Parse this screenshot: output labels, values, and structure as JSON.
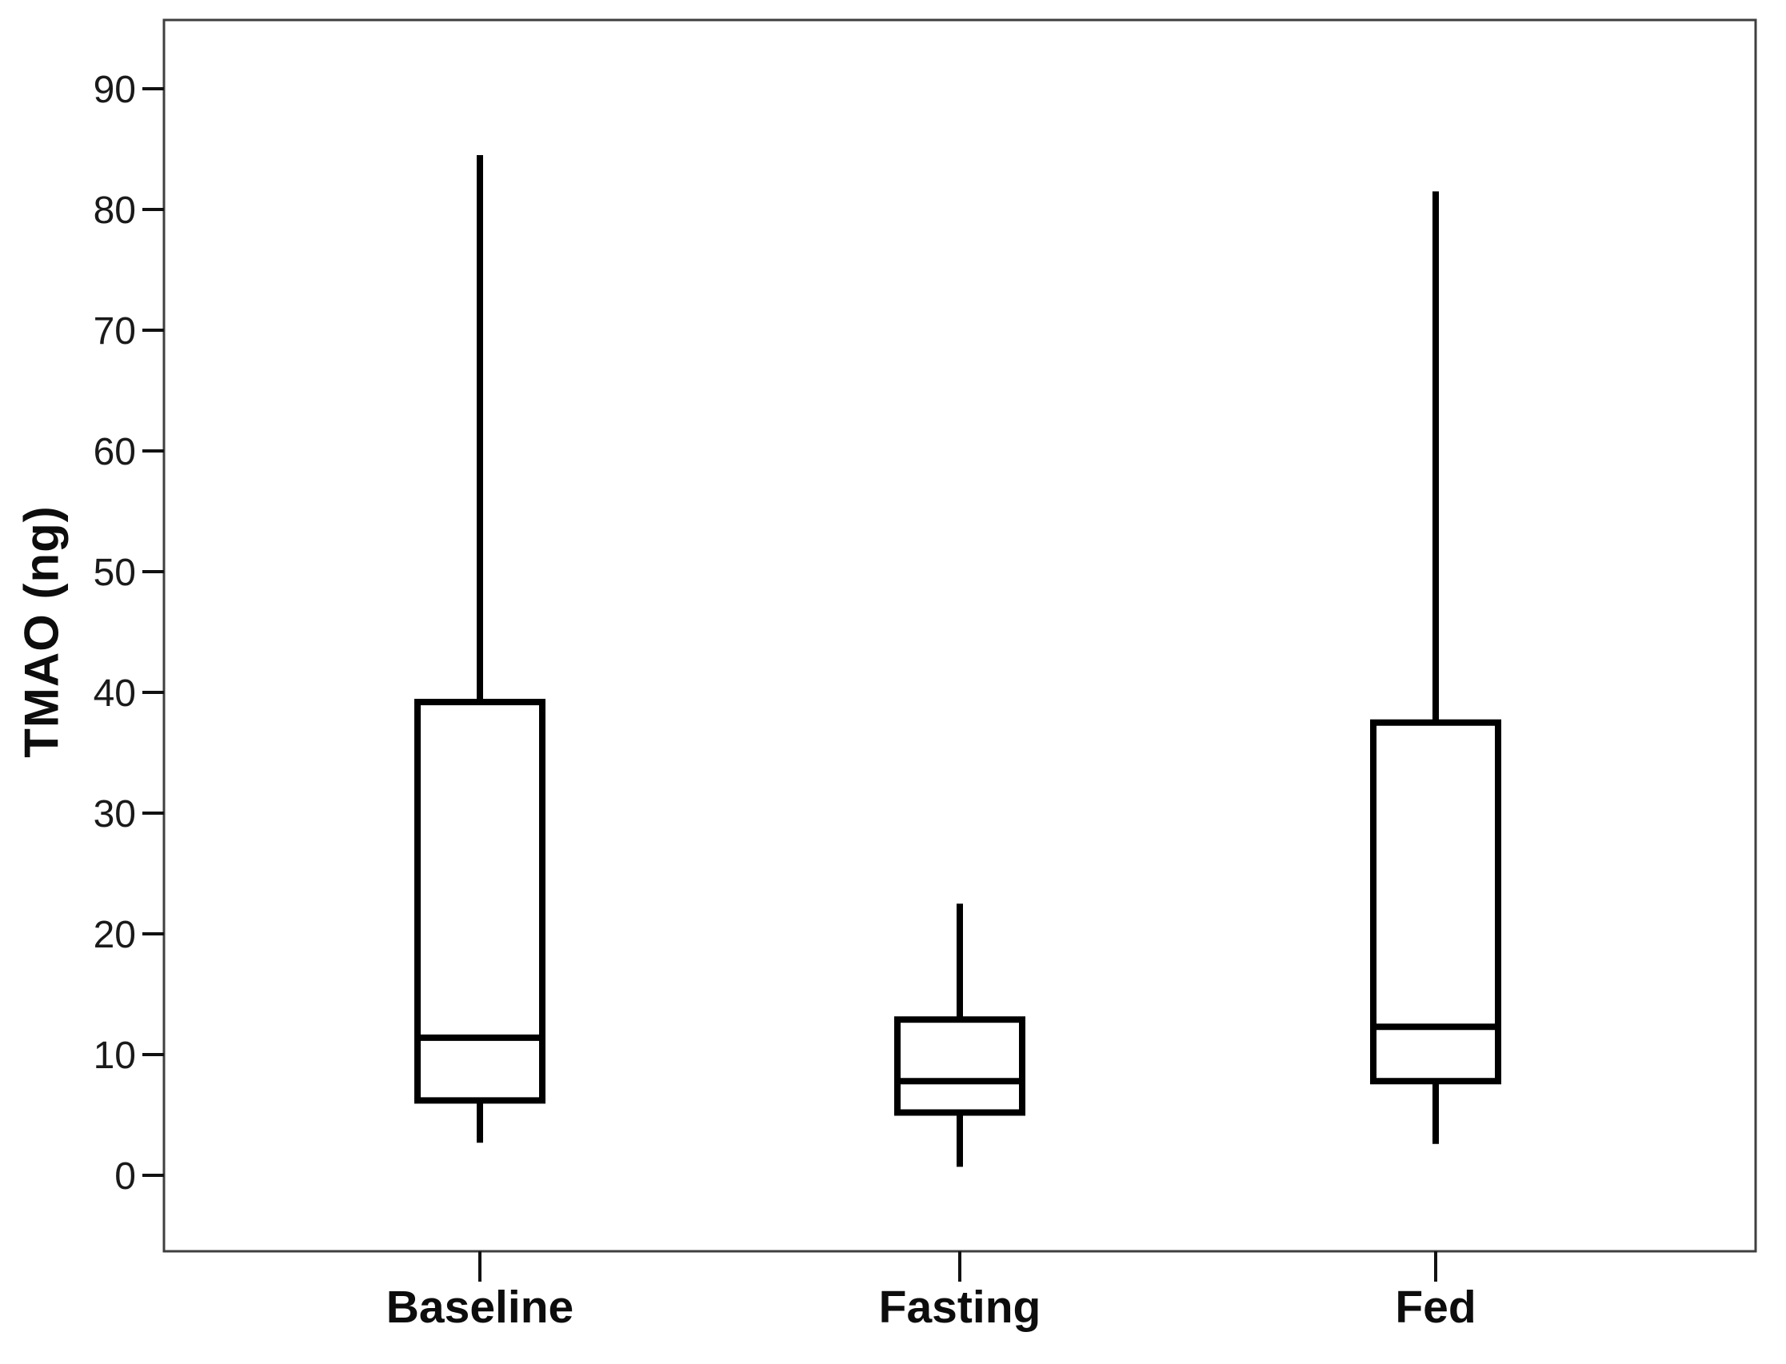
{
  "chart_data": {
    "type": "boxplot",
    "title": "",
    "xlabel": "",
    "ylabel": "TMAO (ng)",
    "categories": [
      "Baseline",
      "Fasting",
      "Fed"
    ],
    "y_ticks": [
      0,
      10,
      20,
      30,
      40,
      50,
      60,
      70,
      80,
      90
    ],
    "ylim": [
      -6.3,
      95.7
    ],
    "grid": false,
    "legend": "none",
    "outliers": [],
    "series": [
      {
        "name": "Baseline",
        "min": 2.7,
        "q1": 6.2,
        "median": 11.4,
        "q3": 39.2,
        "max": 84.5
      },
      {
        "name": "Fasting",
        "min": 0.7,
        "q1": 5.2,
        "median": 7.8,
        "q3": 12.9,
        "max": 22.5
      },
      {
        "name": "Fed",
        "min": 2.6,
        "q1": 7.8,
        "median": 12.3,
        "q3": 37.5,
        "max": 81.5
      }
    ],
    "colors": {
      "box_line": "#000000",
      "box_fill": "#ffffff",
      "frame": "#3f3f3f",
      "text": "#1a1a1a",
      "background": "#ffffff"
    }
  }
}
